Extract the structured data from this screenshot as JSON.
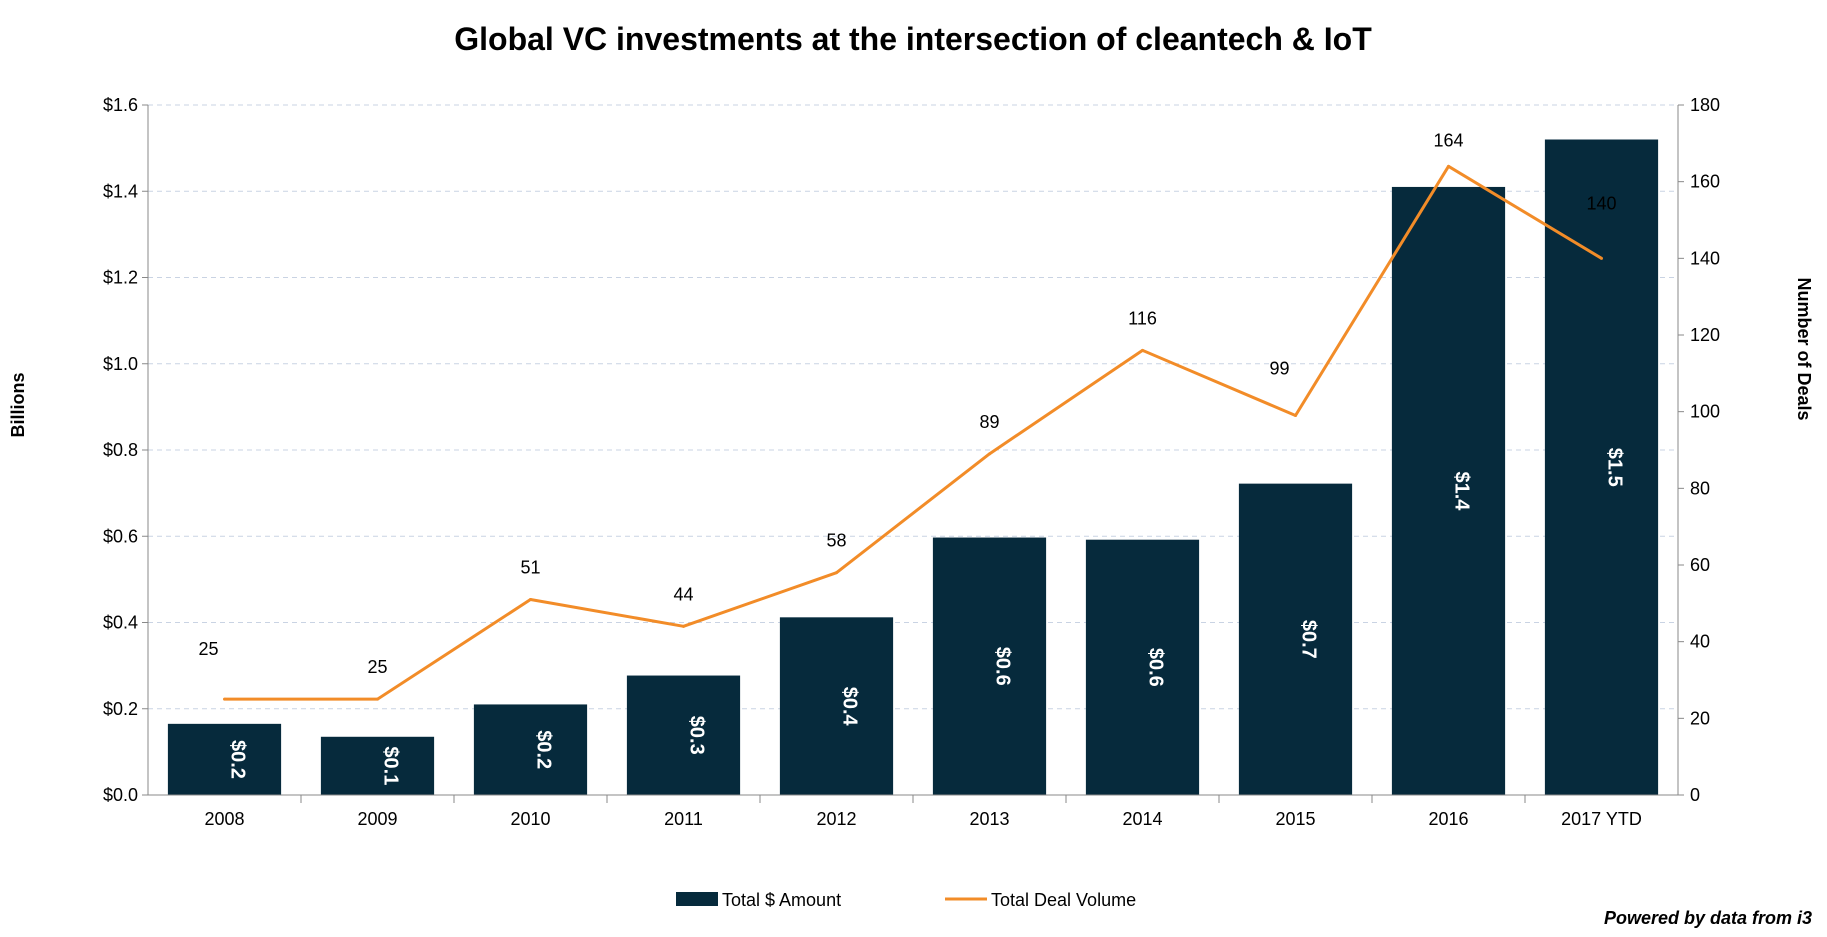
{
  "chart_data": {
    "type": "bar",
    "title": "Global VC investments at the intersection of cleantech & IoT",
    "categories": [
      "2008",
      "2009",
      "2010",
      "2011",
      "2012",
      "2013",
      "2014",
      "2015",
      "2016",
      "2017 YTD"
    ],
    "series": [
      {
        "name": "Total $ Amount",
        "type": "bar",
        "axis": "left",
        "color": "#062A3C",
        "values": [
          0.165,
          0.135,
          0.21,
          0.277,
          0.412,
          0.597,
          0.592,
          0.722,
          1.41,
          1.52
        ],
        "labels": [
          "$0.2",
          "$0.1",
          "$0.2",
          "$0.3",
          "$0.4",
          "$0.6",
          "$0.6",
          "$0.7",
          "$1.4",
          "$1.5"
        ]
      },
      {
        "name": "Total Deal Volume",
        "type": "line",
        "axis": "right",
        "color": "#F28C28",
        "values": [
          25,
          25,
          51,
          44,
          58,
          89,
          116,
          99,
          164,
          140
        ],
        "labels": [
          "25",
          "25",
          "51",
          "44",
          "58",
          "89",
          "116",
          "99",
          "164",
          "140"
        ]
      }
    ],
    "ylabel": "Billions",
    "y2label": "Number of Deals",
    "ylim": [
      0,
      1.6
    ],
    "y2lim": [
      0,
      180
    ],
    "yticks": [
      "$0.0",
      "$0.2",
      "$0.4",
      "$0.6",
      "$0.8",
      "$1.0",
      "$1.2",
      "$1.4",
      "$1.6"
    ],
    "y2ticks": [
      "0",
      "20",
      "40",
      "60",
      "80",
      "100",
      "120",
      "140",
      "160",
      "180"
    ],
    "grid": true,
    "legend": "bottom",
    "credit": "Powered by data from i3"
  }
}
